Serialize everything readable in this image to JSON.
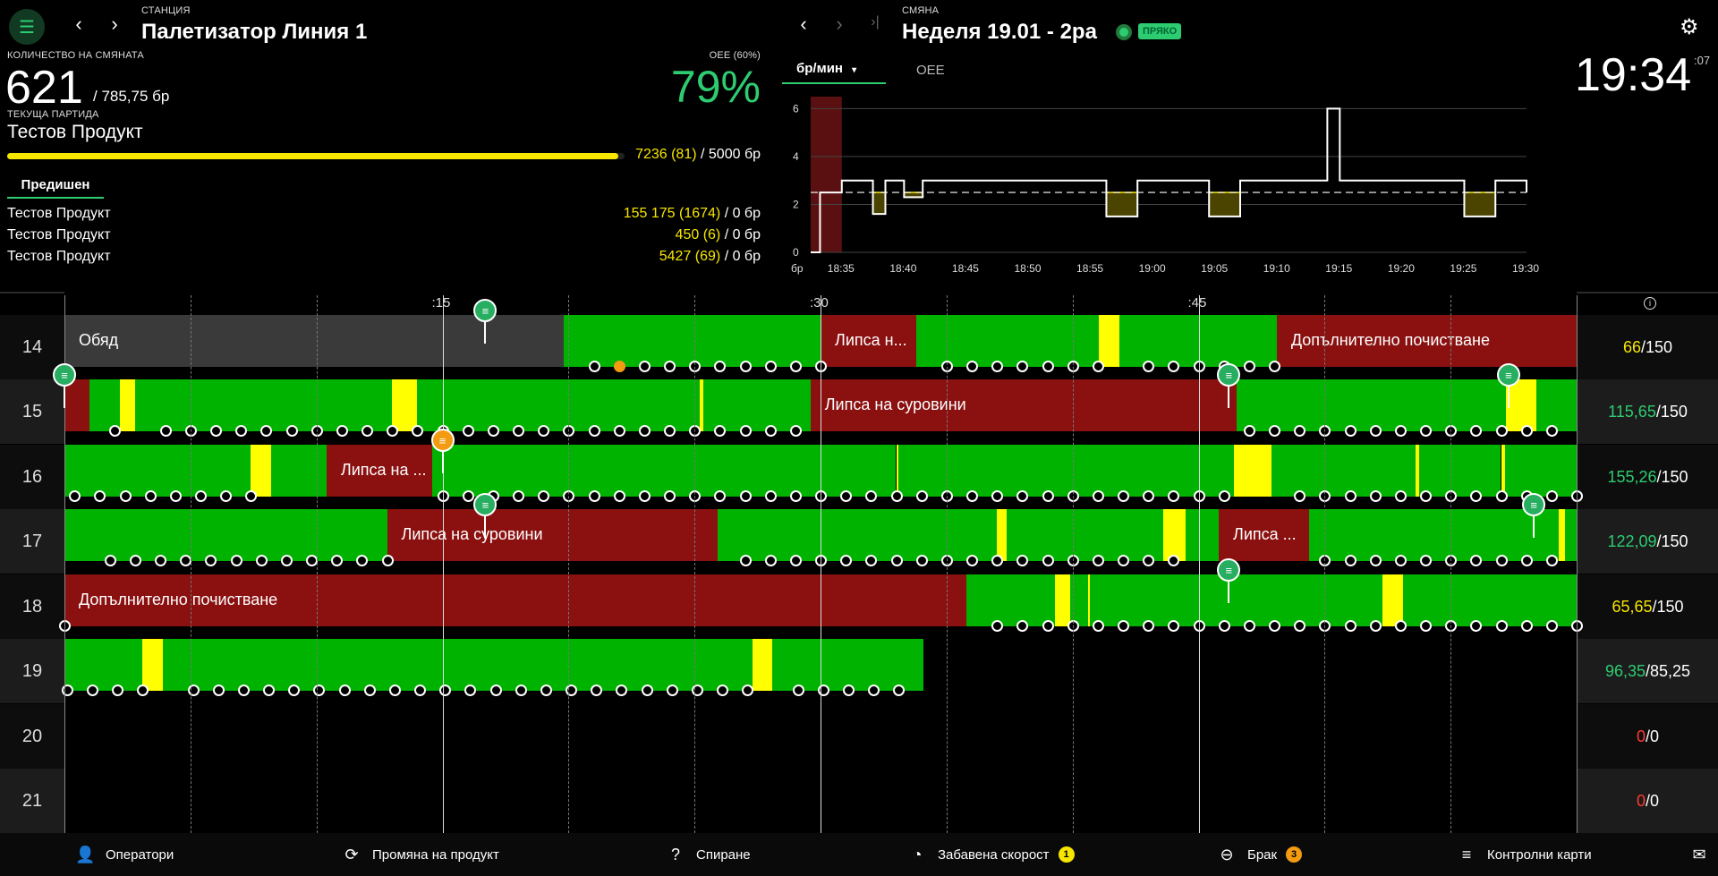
{
  "header": {
    "station_caption": "СТАНЦИЯ",
    "station_name": "Палетизатор Линия 1",
    "shift_caption": "СМЯНА",
    "shift_name": "Неделя 19.01 - 2ра",
    "shift_status": "ПРЯКО",
    "clock": "19:34",
    "clock_seconds": ":07"
  },
  "quantity": {
    "caption": "КОЛИЧЕСТВО НА СМЯНАТА",
    "value": "621",
    "target": "/ 785,75 бр",
    "oee_caption": "OEE (60%)",
    "oee_value": "79%"
  },
  "batch": {
    "caption": "ТЕКУЩА ПАРТИДА",
    "name": "Тестов Продукт",
    "progress_value": "7236 (81)",
    "progress_target": " / 5000 бр",
    "progress_fraction": 0.99
  },
  "previous": {
    "tab_label": "Предишен",
    "rows": [
      {
        "name": "Тестов Продукт",
        "value": "155 175 (1674)",
        "target": " / 0 бр"
      },
      {
        "name": "Тестов Продукт",
        "value": "450 (6)",
        "target": " / 0 бр"
      },
      {
        "name": "Тестов Продукт",
        "value": "5427 (69)",
        "target": " / 0 бр"
      }
    ]
  },
  "chart_tabs": {
    "rate_label": "бр/мин",
    "oee_label": "OEE"
  },
  "chart_data": {
    "type": "line",
    "unit_label": "бр",
    "x": [
      "18:35",
      "18:40",
      "18:45",
      "18:50",
      "18:55",
      "19:00",
      "19:05",
      "19:10",
      "19:15",
      "19:20",
      "19:25",
      "19:30"
    ],
    "yticks": [
      0,
      2,
      4,
      6
    ],
    "ylim": [
      0,
      6.5
    ],
    "target": 2.5,
    "series": [
      {
        "name": "rate",
        "points": [
          [
            0,
            0
          ],
          [
            0.3,
            2.5
          ],
          [
            1.0,
            3
          ],
          [
            2.0,
            1.6
          ],
          [
            2.4,
            3
          ],
          [
            3.0,
            2.3
          ],
          [
            3.6,
            3
          ],
          [
            9.5,
            1.5
          ],
          [
            10.5,
            3
          ],
          [
            11.8,
            3
          ],
          [
            12.8,
            1.5
          ],
          [
            13.8,
            3
          ],
          [
            16.0,
            3
          ],
          [
            16.6,
            6
          ],
          [
            17.0,
            3
          ],
          [
            20.0,
            3
          ],
          [
            21.0,
            1.5
          ],
          [
            22.0,
            3
          ],
          [
            23.0,
            2.5
          ]
        ]
      }
    ]
  },
  "timeline": {
    "time_labels": [
      ":15",
      ":30",
      ":45"
    ],
    "rows": [
      {
        "hour": "14",
        "score_actual": "66",
        "score_target": "/150",
        "score_color": "yellow"
      },
      {
        "hour": "15",
        "score_actual": "115,65",
        "score_target": "/150",
        "score_color": "green"
      },
      {
        "hour": "16",
        "score_actual": "155,26",
        "score_target": "/150",
        "score_color": "green"
      },
      {
        "hour": "17",
        "score_actual": "122,09",
        "score_target": "/150",
        "score_color": "green"
      },
      {
        "hour": "18",
        "score_actual": "65,65",
        "score_target": "/150",
        "score_color": "yellow"
      },
      {
        "hour": "19",
        "score_actual": "96,35",
        "score_target": "/85,25",
        "score_color": "green"
      },
      {
        "hour": "20",
        "score_actual": "0",
        "score_target": "/0",
        "score_color": "red"
      },
      {
        "hour": "21",
        "score_actual": "0",
        "score_target": "/0",
        "score_color": "red"
      }
    ],
    "segment_labels": {
      "lunch": "Обяд",
      "missing_short": "Липса н...",
      "extra_cleaning": "Допълнително почистване",
      "missing_materials": "Липса на суровини",
      "missing_medium": "Липса на ...",
      "missing_tiny": "Липса ..."
    }
  },
  "bottom_bar": {
    "operators": "Оператори",
    "product_change": "Промяна на продукт",
    "stop": "Спиране",
    "slow_speed": "Забавена скорост",
    "slow_speed_badge": "1",
    "scrap": "Брак",
    "scrap_badge": "3",
    "control_cards": "Контролни карти"
  },
  "colors": {
    "green": "#00b300",
    "red": "#8b1010",
    "yellow": "#ffff00",
    "gray": "#3a3a3a",
    "accent": "#2ecc71"
  }
}
